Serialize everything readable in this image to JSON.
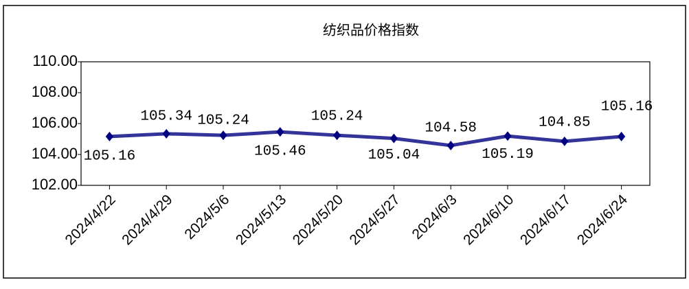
{
  "chart_data": {
    "type": "line",
    "title": "纺织品价格指数",
    "categories": [
      "2024/4/22",
      "2024/4/29",
      "2024/5/6",
      "2024/5/13",
      "2024/5/20",
      "2024/5/27",
      "2024/6/3",
      "2024/6/10",
      "2024/6/17",
      "2024/6/24"
    ],
    "series": [
      {
        "name": "纺织品价格指数",
        "color": "#333399",
        "values": [
          105.16,
          105.34,
          105.24,
          105.46,
          105.24,
          105.04,
          104.58,
          105.19,
          104.85,
          105.16
        ]
      }
    ],
    "ylim": [
      102,
      110
    ],
    "yticks": [
      {
        "value": 102,
        "label": "102.00"
      },
      {
        "value": 104,
        "label": "104.00"
      },
      {
        "value": 106,
        "label": "106.00"
      },
      {
        "value": 108,
        "label": "108.00"
      },
      {
        "value": 110,
        "label": "110.00"
      }
    ],
    "grid": false
  }
}
